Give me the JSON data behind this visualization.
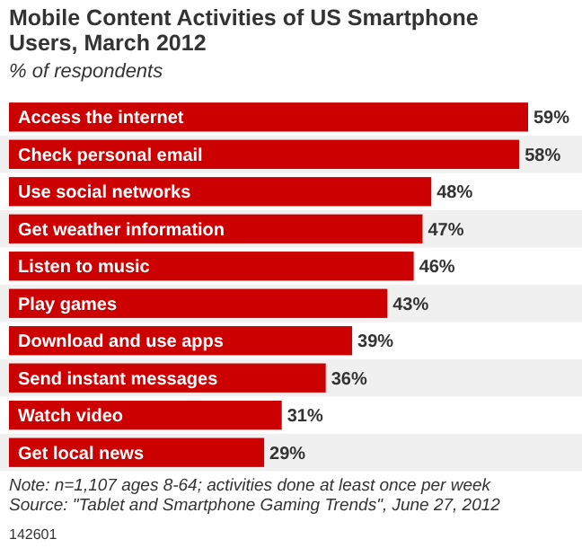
{
  "chart_data": {
    "type": "bar",
    "orientation": "horizontal",
    "title": "Mobile Content Activities of US Smartphone Users, March 2012",
    "subtitle": "% of respondents",
    "categories": [
      "Access the internet",
      "Check personal email",
      "Use social networks",
      "Get weather information",
      "Listen to music",
      "Play games",
      "Download and use apps",
      "Send instant messages",
      "Watch video",
      "Get local news"
    ],
    "values": [
      59,
      58,
      48,
      47,
      46,
      43,
      39,
      36,
      31,
      29
    ],
    "value_labels": [
      "59%",
      "58%",
      "48%",
      "47%",
      "46%",
      "43%",
      "39%",
      "36%",
      "31%",
      "29%"
    ],
    "color": "#cc0000",
    "annotations": [
      "Note: n=1,107 ages 8-64; activities done at least once per week",
      "Source: \"Tablet and Smartphone Gaming Trends\", June 27, 2012",
      "142601"
    ]
  }
}
